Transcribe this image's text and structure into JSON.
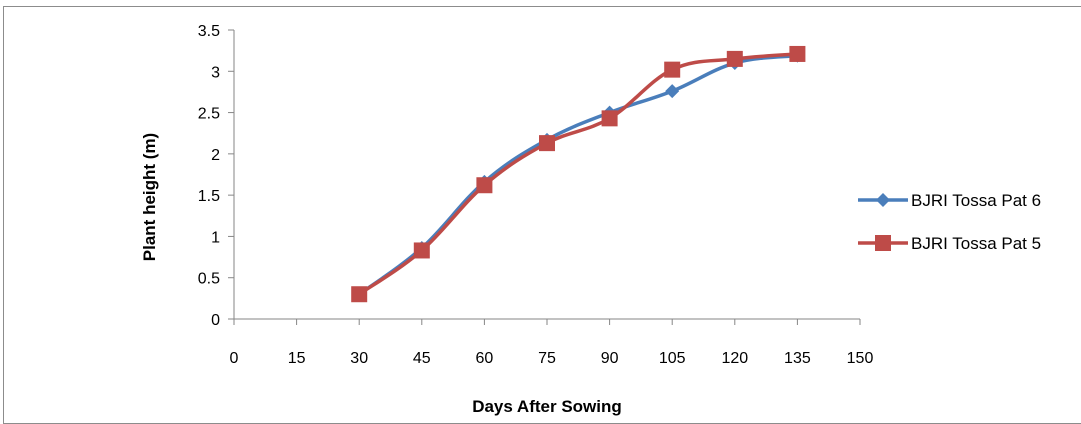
{
  "chart_data": {
    "type": "line",
    "xlabel": "Days After Sowing",
    "ylabel": "Plant height (m)",
    "xlim": [
      0,
      150
    ],
    "ylim": [
      0,
      3.5
    ],
    "x_ticks": [
      "0",
      "15",
      "30",
      "45",
      "60",
      "75",
      "90",
      "105",
      "120",
      "135",
      "150"
    ],
    "y_ticks": [
      "0",
      "0.5",
      "1",
      "1.5",
      "2",
      "2.5",
      "3",
      "3.5"
    ],
    "grid": false,
    "legend_position": "right",
    "series": [
      {
        "name": "BJRI Tossa Pat 6",
        "color": "#4a7ebb",
        "marker": "diamond",
        "x": [
          30,
          45,
          60,
          75,
          90,
          105,
          120,
          135
        ],
        "y": [
          0.3,
          0.86,
          1.66,
          2.17,
          2.5,
          2.76,
          3.1,
          3.19
        ]
      },
      {
        "name": "BJRI Tossa Pat 5",
        "color": "#be4b48",
        "marker": "square",
        "x": [
          30,
          45,
          60,
          75,
          90,
          105,
          120,
          135
        ],
        "y": [
          0.3,
          0.83,
          1.62,
          2.13,
          2.43,
          3.02,
          3.15,
          3.21
        ]
      }
    ]
  }
}
